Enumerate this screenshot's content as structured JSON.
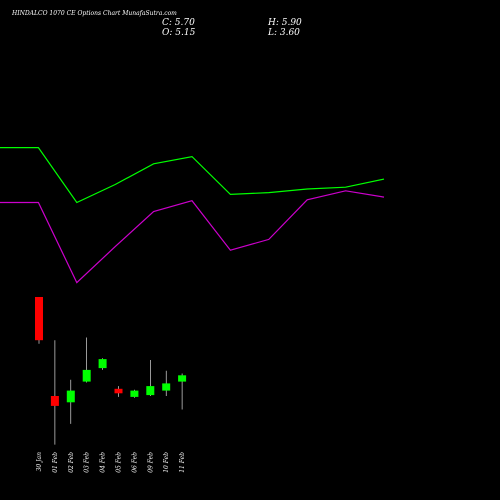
{
  "chart_data": {
    "type": "candlestick",
    "title": "HINDALCO 1070 CE Options Chart MunafaSutra.com",
    "summary": {
      "close_label": "C: 5.70",
      "high_label": "H: 5.90",
      "open_label": "O: 5.15",
      "low_label": "L: 3.60"
    },
    "categories": [
      "30 Jan",
      "01 Feb",
      "02 Feb",
      "03 Feb",
      "04 Feb",
      "05 Feb",
      "06 Feb",
      "09 Feb",
      "10 Feb",
      "11 Feb"
    ],
    "candles": [
      {
        "open": 17.0,
        "high": 17.0,
        "low": 11.8,
        "close": 12.2,
        "color": "#ff0000"
      },
      {
        "open": 6.0,
        "high": 12.2,
        "low": 0.6,
        "close": 4.9,
        "color": "#ff0000"
      },
      {
        "open": 5.3,
        "high": 7.8,
        "low": 2.9,
        "close": 6.6,
        "color": "#00ff00"
      },
      {
        "open": 7.6,
        "high": 12.5,
        "low": 7.5,
        "close": 8.9,
        "color": "#00ff00"
      },
      {
        "open": 9.1,
        "high": 10.2,
        "low": 8.9,
        "close": 10.1,
        "color": "#00ff00"
      },
      {
        "open": 6.8,
        "high": 7.1,
        "low": 5.9,
        "close": 6.3,
        "color": "#ff0000"
      },
      {
        "open": 5.9,
        "high": 6.7,
        "low": 5.8,
        "close": 6.6,
        "color": "#00ff00"
      },
      {
        "open": 6.1,
        "high": 10.0,
        "low": 6.0,
        "close": 7.1,
        "color": "#00ff00"
      },
      {
        "open": 6.6,
        "high": 8.8,
        "low": 6.0,
        "close": 7.4,
        "color": "#00ff00"
      },
      {
        "open": 7.6,
        "high": 8.5,
        "low": 4.5,
        "close": 8.3,
        "color": "#00ff00"
      }
    ],
    "series": [
      {
        "color": "#00ff00",
        "x": [
          0,
          1,
          2,
          3,
          4,
          5,
          6,
          7,
          8,
          9,
          10
        ],
        "values": [
          33.6,
          33.6,
          27.5,
          29.5,
          31.8,
          32.6,
          28.4,
          28.6,
          29.0,
          29.2,
          30.1
        ]
      },
      {
        "color": "#cc00cc",
        "x": [
          0,
          1,
          2,
          3,
          4,
          5,
          6,
          7,
          8,
          9,
          10
        ],
        "values": [
          27.5,
          27.5,
          18.6,
          22.6,
          26.5,
          27.7,
          22.2,
          23.4,
          27.8,
          28.8,
          28.1
        ]
      }
    ],
    "ylim": [
      0,
      40
    ],
    "grid": false,
    "legend": "none"
  }
}
